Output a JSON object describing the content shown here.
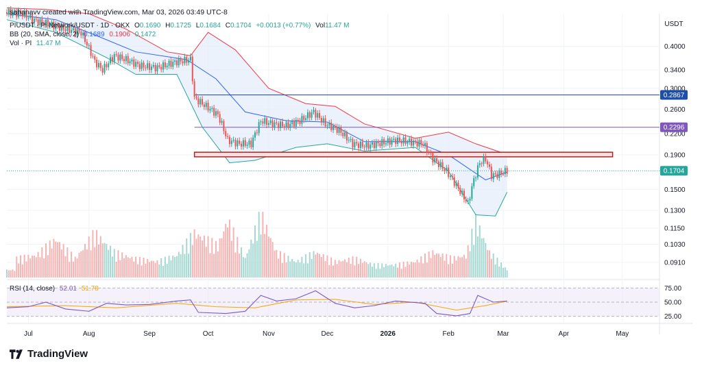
{
  "header": {
    "text": "sahanavv created with TradingView.com, Mar 03, 2026 03:49 UTC-8"
  },
  "legend": {
    "symbol": "PIUSDT · Pi Network/USDT · 1D · OKX",
    "o_label": "O",
    "o_value": "0.1690",
    "h_label": "H",
    "h_value": "0.1725",
    "l_label": "L",
    "l_value": "0.1684",
    "c_label": "C",
    "c_value": "0.1704",
    "change": "+0.0013 (+0.77%)",
    "vol_label": "Vol",
    "vol_value": "11.47 M",
    "bb_label": "BB (20, SMA, close, 2)",
    "bb_basis": "0.1689",
    "bb_upper": "0.1906",
    "bb_lower": "0.1472",
    "vol_pi_label": "Vol · PI",
    "vol_pi_value": "11.47 M",
    "rsi_label": "RSI (14, close)",
    "rsi_value": "52.01",
    "rsi_ma_value": "51.78"
  },
  "brand": {
    "name": "TradingView"
  },
  "colors": {
    "up": "#26a69a",
    "down": "#ef5350",
    "bb_basis": "#2962ff",
    "bb_band": "#f23645",
    "bb_fill": "#e3ecfb",
    "rsi": "#7e57c2",
    "rsi_ma": "#f7a600",
    "hline_blue": "#1e4fa8",
    "hline_purple": "#7e57c2",
    "zone": "#b22222",
    "last_price": "#26a69a"
  },
  "chart_data": {
    "type": "candlestick",
    "currency": "USDT",
    "scale": "log",
    "price_ticks": [
      0.4,
      0.34,
      0.3,
      0.26,
      0.22,
      0.19,
      0.15,
      0.13,
      0.115,
      0.103,
      0.091
    ],
    "price_tick_labels": [
      "0.4000",
      "0.3400",
      "0.3000",
      "0.2600",
      "0.2200",
      "0.1900",
      "0.1500",
      "0.1300",
      "0.1150",
      "0.1030",
      "0.0910"
    ],
    "ylim": [
      0.082,
      0.5
    ],
    "x_start": "2025-06-20",
    "x_end": "2026-05-20",
    "x_ticks": [
      {
        "date": "2025-07-01",
        "label": "Jul"
      },
      {
        "date": "2025-08-01",
        "label": "Aug"
      },
      {
        "date": "2025-09-01",
        "label": "Sep"
      },
      {
        "date": "2025-10-01",
        "label": "Oct"
      },
      {
        "date": "2025-11-01",
        "label": "Nov"
      },
      {
        "date": "2025-12-01",
        "label": "Dec"
      },
      {
        "date": "2026-01-01",
        "label": "2026"
      },
      {
        "date": "2026-02-01",
        "label": "Feb"
      },
      {
        "date": "2026-03-01",
        "label": "Mar"
      },
      {
        "date": "2026-04-01",
        "label": "Apr"
      },
      {
        "date": "2026-05-01",
        "label": "May"
      }
    ],
    "close_series": [
      {
        "date": "2025-06-20",
        "close": 0.505
      },
      {
        "date": "2025-06-28",
        "close": 0.5
      },
      {
        "date": "2025-07-05",
        "close": 0.475
      },
      {
        "date": "2025-07-12",
        "close": 0.465
      },
      {
        "date": "2025-07-20",
        "close": 0.45
      },
      {
        "date": "2025-07-28",
        "close": 0.44
      },
      {
        "date": "2025-08-04",
        "close": 0.36
      },
      {
        "date": "2025-08-08",
        "close": 0.34
      },
      {
        "date": "2025-08-14",
        "close": 0.375
      },
      {
        "date": "2025-08-20",
        "close": 0.365
      },
      {
        "date": "2025-08-27",
        "close": 0.35
      },
      {
        "date": "2025-09-05",
        "close": 0.345
      },
      {
        "date": "2025-09-15",
        "close": 0.36
      },
      {
        "date": "2025-09-22",
        "close": 0.365
      },
      {
        "date": "2025-09-24",
        "close": 0.28
      },
      {
        "date": "2025-09-30",
        "close": 0.265
      },
      {
        "date": "2025-10-06",
        "close": 0.25
      },
      {
        "date": "2025-10-11",
        "close": 0.21
      },
      {
        "date": "2025-10-17",
        "close": 0.205
      },
      {
        "date": "2025-10-23",
        "close": 0.205
      },
      {
        "date": "2025-10-28",
        "close": 0.24
      },
      {
        "date": "2025-11-03",
        "close": 0.235
      },
      {
        "date": "2025-11-10",
        "close": 0.232
      },
      {
        "date": "2025-11-17",
        "close": 0.24
      },
      {
        "date": "2025-11-24",
        "close": 0.255
      },
      {
        "date": "2025-11-30",
        "close": 0.235
      },
      {
        "date": "2025-12-07",
        "close": 0.225
      },
      {
        "date": "2025-12-14",
        "close": 0.205
      },
      {
        "date": "2025-12-21",
        "close": 0.202
      },
      {
        "date": "2025-12-28",
        "close": 0.206
      },
      {
        "date": "2026-01-05",
        "close": 0.21
      },
      {
        "date": "2026-01-12",
        "close": 0.208
      },
      {
        "date": "2026-01-19",
        "close": 0.205
      },
      {
        "date": "2026-01-24",
        "close": 0.185
      },
      {
        "date": "2026-01-31",
        "close": 0.17
      },
      {
        "date": "2026-02-07",
        "close": 0.148
      },
      {
        "date": "2026-02-11",
        "close": 0.136
      },
      {
        "date": "2026-02-14",
        "close": 0.16
      },
      {
        "date": "2026-02-17",
        "close": 0.18
      },
      {
        "date": "2026-02-20",
        "close": 0.185
      },
      {
        "date": "2026-02-23",
        "close": 0.165
      },
      {
        "date": "2026-02-26",
        "close": 0.166
      },
      {
        "date": "2026-03-03",
        "close": 0.1704
      }
    ],
    "bb_upper": [
      {
        "date": "2025-06-20",
        "v": 0.52
      },
      {
        "date": "2025-07-10",
        "v": 0.515
      },
      {
        "date": "2025-08-01",
        "v": 0.5
      },
      {
        "date": "2025-08-20",
        "v": 0.45
      },
      {
        "date": "2025-09-10",
        "v": 0.385
      },
      {
        "date": "2025-09-22",
        "v": 0.375
      },
      {
        "date": "2025-10-01",
        "v": 0.44
      },
      {
        "date": "2025-10-15",
        "v": 0.39
      },
      {
        "date": "2025-11-01",
        "v": 0.3
      },
      {
        "date": "2025-11-20",
        "v": 0.27
      },
      {
        "date": "2025-12-05",
        "v": 0.265
      },
      {
        "date": "2025-12-20",
        "v": 0.235
      },
      {
        "date": "2026-01-15",
        "v": 0.213
      },
      {
        "date": "2026-02-01",
        "v": 0.222
      },
      {
        "date": "2026-02-15",
        "v": 0.205
      },
      {
        "date": "2026-03-03",
        "v": 0.1906
      }
    ],
    "bb_basis": [
      {
        "date": "2025-06-20",
        "v": 0.5
      },
      {
        "date": "2025-07-15",
        "v": 0.48
      },
      {
        "date": "2025-08-05",
        "v": 0.43
      },
      {
        "date": "2025-08-25",
        "v": 0.385
      },
      {
        "date": "2025-09-20",
        "v": 0.365
      },
      {
        "date": "2025-10-05",
        "v": 0.32
      },
      {
        "date": "2025-10-20",
        "v": 0.255
      },
      {
        "date": "2025-11-10",
        "v": 0.24
      },
      {
        "date": "2025-12-01",
        "v": 0.238
      },
      {
        "date": "2025-12-20",
        "v": 0.208
      },
      {
        "date": "2026-01-15",
        "v": 0.208
      },
      {
        "date": "2026-02-01",
        "v": 0.19
      },
      {
        "date": "2026-02-20",
        "v": 0.16
      },
      {
        "date": "2026-03-03",
        "v": 0.1689
      }
    ],
    "bb_lower": [
      {
        "date": "2025-06-20",
        "v": 0.48
      },
      {
        "date": "2025-07-15",
        "v": 0.44
      },
      {
        "date": "2025-08-10",
        "v": 0.37
      },
      {
        "date": "2025-08-25",
        "v": 0.33
      },
      {
        "date": "2025-09-15",
        "v": 0.33
      },
      {
        "date": "2025-09-28",
        "v": 0.23
      },
      {
        "date": "2025-10-12",
        "v": 0.18
      },
      {
        "date": "2025-10-25",
        "v": 0.183
      },
      {
        "date": "2025-11-15",
        "v": 0.2
      },
      {
        "date": "2025-12-01",
        "v": 0.205
      },
      {
        "date": "2025-12-20",
        "v": 0.195
      },
      {
        "date": "2026-01-15",
        "v": 0.2
      },
      {
        "date": "2026-02-01",
        "v": 0.17
      },
      {
        "date": "2026-02-15",
        "v": 0.126
      },
      {
        "date": "2026-02-25",
        "v": 0.125
      },
      {
        "date": "2026-03-03",
        "v": 0.1472
      }
    ],
    "horizontal_lines": [
      {
        "value": 0.2867,
        "label": "0.2867",
        "start": "2025-09-24",
        "color": "#1e4fa8"
      },
      {
        "value": 0.2296,
        "label": "0.2296",
        "start": "2025-09-24",
        "color": "#7e57c2"
      }
    ],
    "last_price": {
      "value": 0.1704,
      "label": "0.1704"
    },
    "zone": {
      "start": "2025-09-24",
      "end": "2026-04-26",
      "low": 0.1875,
      "high": 0.1935
    },
    "volume_series": [
      {
        "date": "2025-06-25",
        "v": 0.3
      },
      {
        "date": "2025-07-05",
        "v": 0.35
      },
      {
        "date": "2025-07-15",
        "v": 0.6
      },
      {
        "date": "2025-07-25",
        "v": 0.3
      },
      {
        "date": "2025-08-04",
        "v": 0.7
      },
      {
        "date": "2025-08-14",
        "v": 0.4
      },
      {
        "date": "2025-08-24",
        "v": 0.3
      },
      {
        "date": "2025-09-05",
        "v": 0.25
      },
      {
        "date": "2025-09-15",
        "v": 0.35
      },
      {
        "date": "2025-09-24",
        "v": 0.7
      },
      {
        "date": "2025-10-06",
        "v": 0.5
      },
      {
        "date": "2025-10-11",
        "v": 0.9
      },
      {
        "date": "2025-10-20",
        "v": 0.3
      },
      {
        "date": "2025-10-28",
        "v": 1.0
      },
      {
        "date": "2025-11-05",
        "v": 0.4
      },
      {
        "date": "2025-11-15",
        "v": 0.25
      },
      {
        "date": "2025-11-25",
        "v": 0.4
      },
      {
        "date": "2025-12-05",
        "v": 0.25
      },
      {
        "date": "2025-12-15",
        "v": 0.3
      },
      {
        "date": "2025-12-25",
        "v": 0.2
      },
      {
        "date": "2026-01-05",
        "v": 0.2
      },
      {
        "date": "2026-01-15",
        "v": 0.25
      },
      {
        "date": "2026-01-24",
        "v": 0.4
      },
      {
        "date": "2026-02-03",
        "v": 0.3
      },
      {
        "date": "2026-02-10",
        "v": 0.35
      },
      {
        "date": "2026-02-15",
        "v": 0.9
      },
      {
        "date": "2026-02-22",
        "v": 0.4
      },
      {
        "date": "2026-03-03",
        "v": 0.12
      }
    ],
    "rsi": {
      "ticks": [
        75,
        50,
        25
      ],
      "tick_labels": [
        "75.00",
        "50.00",
        "25.00"
      ],
      "ylim": [
        15,
        85
      ],
      "series": [
        {
          "date": "2025-06-20",
          "v": 40
        },
        {
          "date": "2025-07-01",
          "v": 42
        },
        {
          "date": "2025-07-10",
          "v": 50
        },
        {
          "date": "2025-07-20",
          "v": 38
        },
        {
          "date": "2025-08-01",
          "v": 34
        },
        {
          "date": "2025-08-10",
          "v": 48
        },
        {
          "date": "2025-08-20",
          "v": 45
        },
        {
          "date": "2025-09-01",
          "v": 46
        },
        {
          "date": "2025-09-15",
          "v": 52
        },
        {
          "date": "2025-09-22",
          "v": 54
        },
        {
          "date": "2025-09-26",
          "v": 32
        },
        {
          "date": "2025-10-10",
          "v": 30
        },
        {
          "date": "2025-10-20",
          "v": 34
        },
        {
          "date": "2025-10-28",
          "v": 62
        },
        {
          "date": "2025-11-05",
          "v": 52
        },
        {
          "date": "2025-11-15",
          "v": 56
        },
        {
          "date": "2025-11-25",
          "v": 70
        },
        {
          "date": "2025-12-05",
          "v": 48
        },
        {
          "date": "2025-12-15",
          "v": 40
        },
        {
          "date": "2025-12-25",
          "v": 44
        },
        {
          "date": "2026-01-05",
          "v": 52
        },
        {
          "date": "2026-01-20",
          "v": 48
        },
        {
          "date": "2026-01-26",
          "v": 30
        },
        {
          "date": "2026-02-05",
          "v": 26
        },
        {
          "date": "2026-02-12",
          "v": 30
        },
        {
          "date": "2026-02-16",
          "v": 62
        },
        {
          "date": "2026-02-24",
          "v": 50
        },
        {
          "date": "2026-03-03",
          "v": 52.01
        }
      ],
      "ma_series": [
        {
          "date": "2025-06-20",
          "v": 42
        },
        {
          "date": "2025-07-20",
          "v": 44
        },
        {
          "date": "2025-08-15",
          "v": 40
        },
        {
          "date": "2025-09-15",
          "v": 48
        },
        {
          "date": "2025-10-05",
          "v": 42
        },
        {
          "date": "2025-10-25",
          "v": 40
        },
        {
          "date": "2025-11-15",
          "v": 54
        },
        {
          "date": "2025-12-05",
          "v": 55
        },
        {
          "date": "2025-12-25",
          "v": 46
        },
        {
          "date": "2026-01-15",
          "v": 50
        },
        {
          "date": "2026-02-05",
          "v": 36
        },
        {
          "date": "2026-02-20",
          "v": 44
        },
        {
          "date": "2026-03-03",
          "v": 51.78
        }
      ]
    }
  }
}
